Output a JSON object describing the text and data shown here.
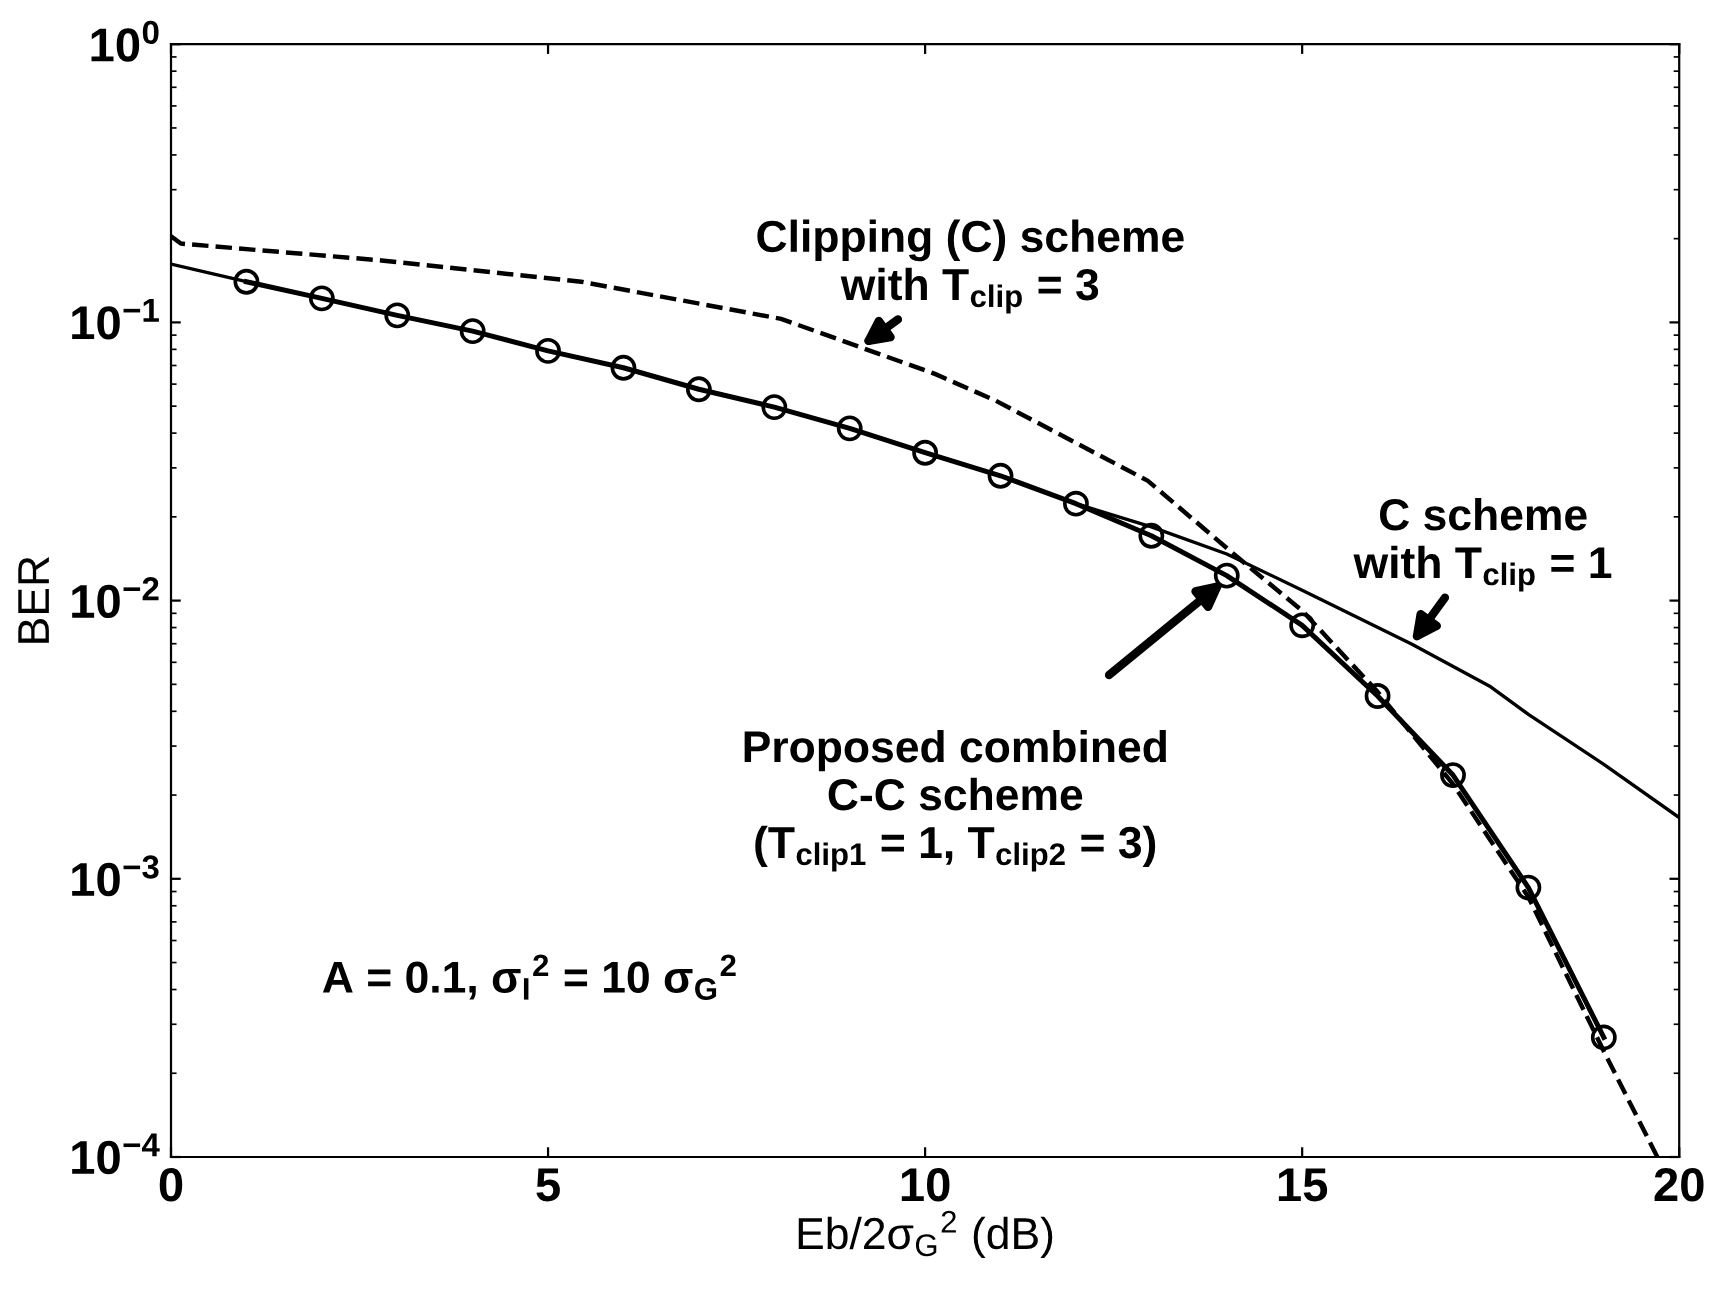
{
  "chart_data": {
    "type": "line",
    "xlabel": "Eb/2σ$_{G}$$^{2}$ (dB)",
    "ylabel": "BER",
    "xlim": [
      0,
      20
    ],
    "ylim": [
      0.0001,
      1
    ],
    "log": "y",
    "grid": false,
    "legend": false,
    "xticks": [
      0,
      5,
      10,
      15,
      20
    ],
    "yticks": [
      {
        "value": 0.0001,
        "label": "10$^{−4}$"
      },
      {
        "value": 0.001,
        "label": "10$^{−3}$"
      },
      {
        "value": 0.01,
        "label": "10$^{−2}$"
      },
      {
        "value": 0.1,
        "label": "10$^{−1}$"
      },
      {
        "value": 1,
        "label": "10$^{0}$"
      }
    ],
    "series": [
      {
        "color": "#000000",
        "line_style": "dashed",
        "marker": "none",
        "x": [
          0,
          0.13,
          2.79,
          5.44,
          8.09,
          10.13,
          10.93,
          12.95,
          14.2,
          15,
          16,
          17,
          18,
          19,
          19.71
        ],
        "values": [
          0.204,
          0.192,
          0.167,
          0.14,
          0.103,
          0.0653,
          0.0524,
          0.027,
          0.0139,
          0.0092,
          0.0047,
          0.00219,
          0.00086,
          0.00024,
          0.0001
        ]
      },
      {
        "color": "#000000",
        "line_style": "solid",
        "marker": "none",
        "x": [
          0,
          1,
          2,
          3,
          4,
          5,
          6,
          7,
          8,
          9,
          10,
          11,
          12,
          13,
          14,
          15,
          16.45,
          17.5,
          18,
          19,
          20
        ],
        "values": [
          0.162,
          0.14,
          null,
          null,
          null,
          null,
          null,
          null,
          null,
          null,
          null,
          0.0281,
          0.0223,
          0.0184,
          0.0147,
          0.0109,
          0.00698,
          0.0049,
          0.0039,
          0.00258,
          0.00166
        ]
      },
      {
        "color": "#000000",
        "line_style": "solid",
        "marker": "circle",
        "x": [
          1,
          2,
          3,
          4,
          5,
          6,
          7,
          8,
          9,
          10,
          11,
          12,
          13,
          14,
          15,
          16,
          17,
          18,
          19
        ],
        "values": [
          0.14,
          0.122,
          0.106,
          0.093,
          0.079,
          0.0687,
          0.0575,
          0.0496,
          0.0416,
          0.034,
          0.0281,
          0.0223,
          0.0171,
          0.0123,
          0.00815,
          0.00454,
          0.00236,
          0.00093,
          0.000269
        ]
      }
    ],
    "annotations": [
      {
        "text": "Clipping (C) scheme\nwith T$_{clip}$ = 3",
        "x": 9.15,
        "y": 0.082
      },
      {
        "text": "C scheme\nwith T$_{clip}$ = 1",
        "x": 16.45,
        "y": 0.007
      },
      {
        "text": "Proposed combined\nC-C scheme\n(T$_{clip1}$ = 1, T$_{clip2}$ = 3)",
        "x": 13.97,
        "y": 0.0118
      },
      "A = 0.1, σ$_{I}$$^{2}$ = 10 σ$_{G}$$^{2}$"
    ]
  }
}
